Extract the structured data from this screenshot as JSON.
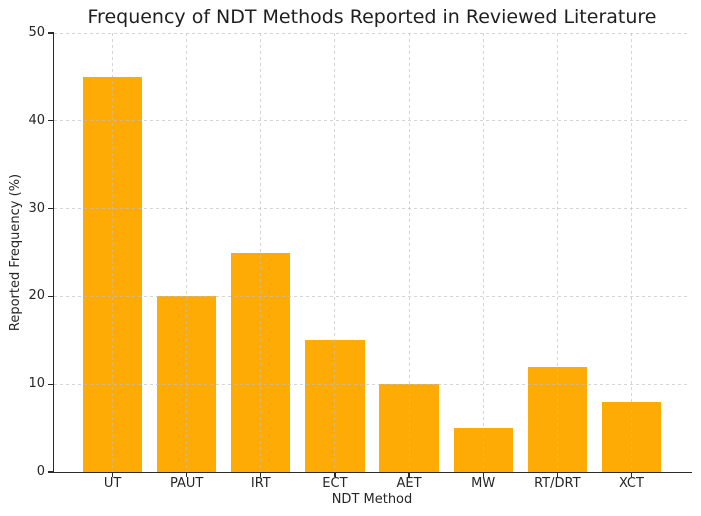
{
  "chart_data": {
    "type": "bar",
    "title": "Frequency of NDT Methods Reported in Reviewed Literature",
    "xlabel": "NDT Method",
    "ylabel": "Reported Frequency (%)",
    "categories": [
      "UT",
      "PAUT",
      "IRT",
      "ECT",
      "AET",
      "MW",
      "RT/DRT",
      "XCT"
    ],
    "values": [
      45,
      20,
      25,
      15,
      10,
      5,
      12,
      8
    ],
    "ylim": [
      0,
      50
    ],
    "yticks": [
      0,
      10,
      20,
      30,
      40,
      50
    ],
    "grid": "both-axes dashed, drawn over bars",
    "legend": "none",
    "bar_color": "#FFAB05",
    "grid_color": "#D6D6D6",
    "axis_color": "#2A2A2A",
    "text_color": "#262626",
    "background_color": "#FFFFFF"
  }
}
